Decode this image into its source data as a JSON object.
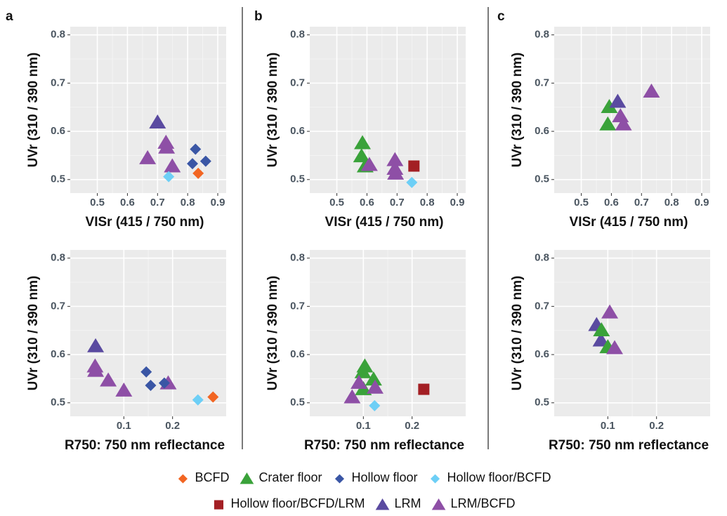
{
  "panels": [
    "a",
    "b",
    "c"
  ],
  "legend": [
    {
      "name": "BCFD",
      "color": "#f26522",
      "marker": "diamond"
    },
    {
      "name": "Crater floor",
      "color": "#3aa23a",
      "marker": "triangle"
    },
    {
      "name": "Hollow floor",
      "color": "#3a56a5",
      "marker": "diamond"
    },
    {
      "name": "Hollow floor/BCFD",
      "color": "#6dcff6",
      "marker": "diamond"
    },
    {
      "name": "Hollow floor/BCFD/LRM",
      "color": "#a31f24",
      "marker": "square"
    },
    {
      "name": "LRM",
      "color": "#5a4aa0",
      "marker": "triangle"
    },
    {
      "name": "LRM/BCFD",
      "color": "#8e4fa6",
      "marker": "triangle"
    }
  ],
  "chart_data": [
    {
      "type": "scatter",
      "xlabel": "VISr (415 / 750 nm)",
      "ylabel": "UVr (310 / 390 nm)",
      "xlim": [
        0.41,
        0.928
      ],
      "ylim": [
        0.472,
        0.817
      ],
      "xticks": [
        0.5,
        0.6,
        0.7,
        0.8,
        0.9
      ],
      "yticks": [
        0.5,
        0.6,
        0.7,
        0.8
      ],
      "grid": true,
      "series": [
        {
          "name": "LRM/BCFD",
          "x": [
            0.667,
            0.728,
            0.73,
            0.749
          ],
          "values": [
            0.545,
            0.577,
            0.567,
            0.528
          ]
        },
        {
          "name": "LRM",
          "x": [
            0.7
          ],
          "values": [
            0.619
          ]
        },
        {
          "name": "Hollow floor",
          "x": [
            0.826,
            0.816,
            0.86
          ],
          "values": [
            0.563,
            0.533,
            0.538
          ]
        },
        {
          "name": "Hollow floor/BCFD",
          "x": [
            0.737
          ],
          "values": [
            0.506
          ]
        },
        {
          "name": "BCFD",
          "x": [
            0.835
          ],
          "values": [
            0.513
          ]
        }
      ]
    },
    {
      "type": "scatter",
      "xlabel": "R750: 750 nm reflectance",
      "ylabel": "UVr (310 / 390 nm)",
      "xlim": [
        -0.01,
        0.31
      ],
      "ylim": [
        0.472,
        0.817
      ],
      "xticks": [
        0.1,
        0.2
      ],
      "yticks": [
        0.5,
        0.6,
        0.7,
        0.8
      ],
      "grid": true,
      "series": [
        {
          "name": "LRM/BCFD",
          "x": [
            0.041,
            0.042,
            0.068,
            0.1,
            0.191
          ],
          "values": [
            0.576,
            0.567,
            0.547,
            0.526,
            0.541
          ]
        },
        {
          "name": "LRM",
          "x": [
            0.042
          ],
          "values": [
            0.618
          ]
        },
        {
          "name": "Hollow floor",
          "x": [
            0.146,
            0.155,
            0.183
          ],
          "values": [
            0.564,
            0.536,
            0.541
          ]
        },
        {
          "name": "Hollow floor/BCFD",
          "x": [
            0.252
          ],
          "values": [
            0.506
          ]
        },
        {
          "name": "BCFD",
          "x": [
            0.283
          ],
          "values": [
            0.512
          ]
        }
      ]
    },
    {
      "type": "scatter",
      "xlabel": "VISr (415 / 750 nm)",
      "ylabel": "UVr (310 / 390 nm)",
      "xlim": [
        0.41,
        0.928
      ],
      "ylim": [
        0.472,
        0.817
      ],
      "xticks": [
        0.5,
        0.6,
        0.7,
        0.8,
        0.9
      ],
      "yticks": [
        0.5,
        0.6,
        0.7,
        0.8
      ],
      "grid": true,
      "series": [
        {
          "name": "Hollow floor/BCFD",
          "x": [
            0.749
          ],
          "values": [
            0.494
          ]
        },
        {
          "name": "Crater floor",
          "x": [
            0.585,
            0.582,
            0.594
          ],
          "values": [
            0.576,
            0.549,
            0.528
          ]
        },
        {
          "name": "LRM/BCFD",
          "x": [
            0.608,
            0.693,
            0.693,
            0.695
          ],
          "values": [
            0.531,
            0.541,
            0.523,
            0.513
          ]
        },
        {
          "name": "Hollow floor/BCFD/LRM",
          "x": [
            0.756
          ],
          "values": [
            0.528
          ]
        }
      ]
    },
    {
      "type": "scatter",
      "xlabel": "R750: 750 nm reflectance",
      "ylabel": "UVr (310 / 390 nm)",
      "xlim": [
        -0.01,
        0.31
      ],
      "ylim": [
        0.472,
        0.817
      ],
      "xticks": [
        0.1,
        0.2
      ],
      "yticks": [
        0.5,
        0.6,
        0.7,
        0.8
      ],
      "grid": true,
      "series": [
        {
          "name": "Hollow floor/BCFD",
          "x": [
            0.123
          ],
          "values": [
            0.494
          ]
        },
        {
          "name": "Crater floor",
          "x": [
            0.103,
            0.099,
            0.121,
            0.1
          ],
          "values": [
            0.576,
            0.564,
            0.549,
            0.529
          ]
        },
        {
          "name": "LRM/BCFD",
          "x": [
            0.091,
            0.077,
            0.124
          ],
          "values": [
            0.542,
            0.512,
            0.532
          ]
        },
        {
          "name": "Hollow floor/BCFD/LRM",
          "x": [
            0.224
          ],
          "values": [
            0.528
          ]
        }
      ]
    },
    {
      "type": "scatter",
      "xlabel": "VISr (415 / 750 nm)",
      "ylabel": "UVr (310 / 390 nm)",
      "xlim": [
        0.41,
        0.928
      ],
      "ylim": [
        0.472,
        0.817
      ],
      "xticks": [
        0.5,
        0.6,
        0.7,
        0.8,
        0.9
      ],
      "yticks": [
        0.5,
        0.6,
        0.7,
        0.8
      ],
      "grid": true,
      "series": [
        {
          "name": "Crater floor",
          "x": [
            0.593,
            0.588
          ],
          "values": [
            0.651,
            0.615
          ]
        },
        {
          "name": "LRM",
          "x": [
            0.621
          ],
          "values": [
            0.662
          ]
        },
        {
          "name": "LRM/BCFD",
          "x": [
            0.63,
            0.64,
            0.733
          ],
          "values": [
            0.632,
            0.615,
            0.683
          ]
        }
      ]
    },
    {
      "type": "scatter",
      "xlabel": "R750: 750 nm reflectance",
      "ylabel": "UVr (310 / 390 nm)",
      "xlim": [
        -0.01,
        0.31
      ],
      "ylim": [
        0.472,
        0.817
      ],
      "xticks": [
        0.1,
        0.2
      ],
      "yticks": [
        0.5,
        0.6,
        0.7,
        0.8
      ],
      "grid": true,
      "series": [
        {
          "name": "LRM",
          "x": [
            0.077,
            0.086
          ],
          "values": [
            0.662,
            0.63
          ]
        },
        {
          "name": "Crater floor",
          "x": [
            0.087,
            0.1
          ],
          "values": [
            0.651,
            0.616
          ]
        },
        {
          "name": "LRM/BCFD",
          "x": [
            0.104,
            0.114
          ],
          "values": [
            0.688,
            0.614
          ]
        }
      ]
    }
  ]
}
